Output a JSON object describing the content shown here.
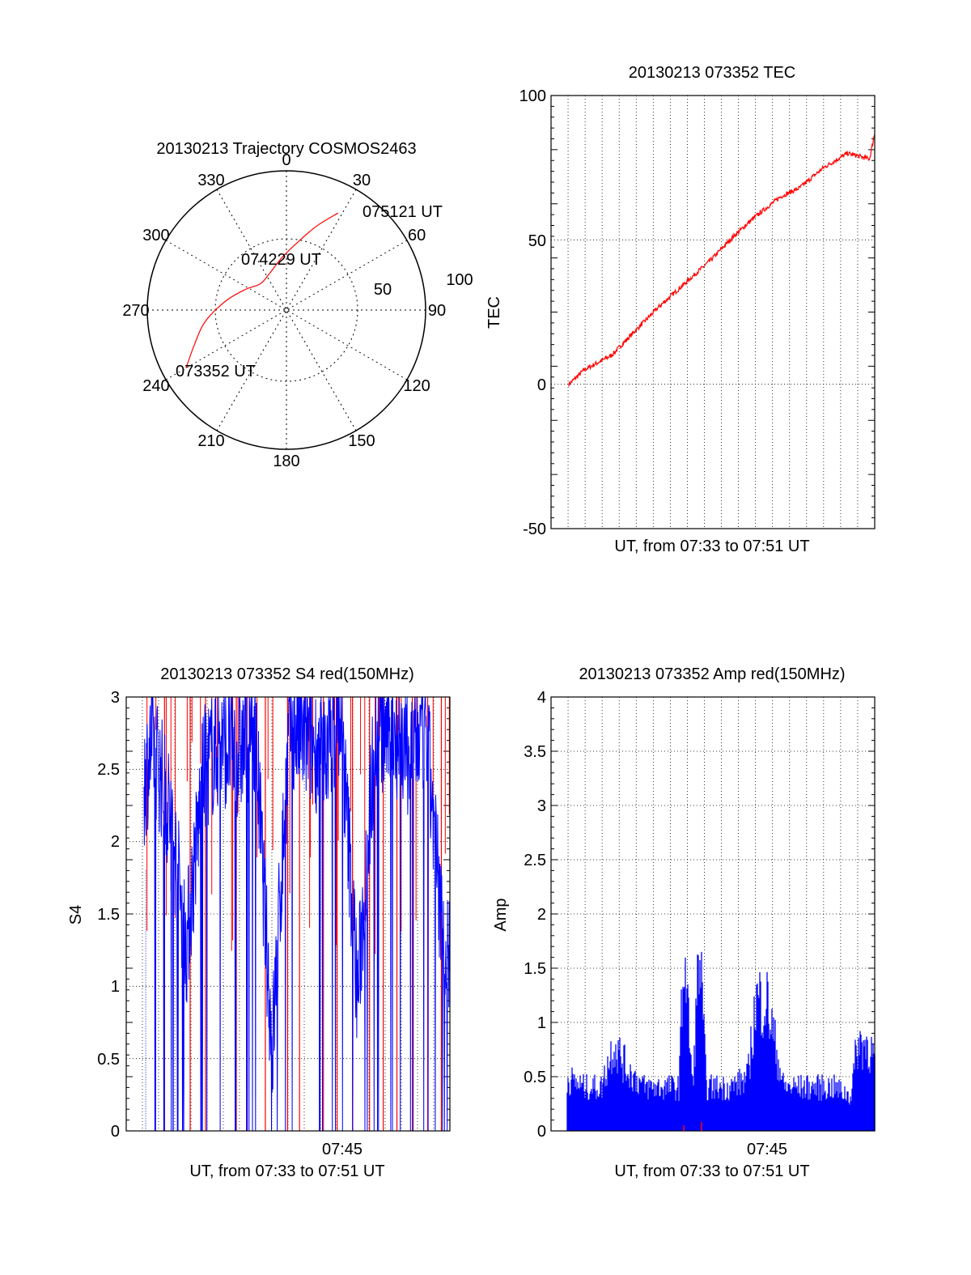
{
  "chart_data": [
    {
      "id": "polar",
      "type": "polar-trajectory",
      "title": "20130213 Trajectory COSMOS2463",
      "azimuth_labels": [
        "0",
        "30",
        "60",
        "90",
        "120",
        "150",
        "180",
        "210",
        "240",
        "270",
        "300",
        "330"
      ],
      "radial_labels": [
        "50",
        "100"
      ],
      "trajectory": {
        "color": "#ff0000",
        "points_az_zen": [
          [
            240,
            75
          ],
          [
            250,
            63
          ],
          [
            262,
            53
          ],
          [
            278,
            40
          ],
          [
            296,
            30
          ],
          [
            315,
            24
          ],
          [
            335,
            26
          ],
          [
            355,
            34
          ],
          [
            10,
            45
          ],
          [
            20,
            58
          ],
          [
            28,
            71
          ]
        ]
      },
      "annotations": [
        {
          "text": "073352 UT",
          "az": 240,
          "zen": 75
        },
        {
          "text": "074229 UT",
          "az": 315,
          "zen": 24
        },
        {
          "text": "075121 UT",
          "az": 28,
          "zen": 71
        }
      ]
    },
    {
      "id": "tec",
      "type": "line",
      "title": "20130213 073352 TEC",
      "xlabel": "UT, from 07:33 to 07:51 UT",
      "ylabel": "TEC",
      "ylim": [
        -50,
        100
      ],
      "yticks": [
        "100",
        "50",
        "0",
        "-50"
      ],
      "grid": true,
      "series": [
        {
          "color": "#ff0000",
          "x_min_after_0733": [
            0,
            0.9,
            2.5,
            3.8,
            5.3,
            6.8,
            8.3,
            9.6,
            10.9,
            12.4,
            13.5,
            14.9,
            16.3,
            17.6,
            17.9
          ],
          "values": [
            0,
            5,
            10,
            18,
            27,
            35,
            43,
            51,
            58,
            65,
            68,
            75,
            80,
            78,
            87
          ]
        }
      ]
    },
    {
      "id": "s4",
      "type": "line",
      "title": "20130213 073352 S4 red(150MHz)",
      "xlabel": "UT, from 07:33 to 07:51 UT",
      "ylabel": "S4",
      "ylim": [
        0,
        3
      ],
      "yticks": [
        "3",
        "2.5",
        "2",
        "1.5",
        "1",
        "0.5",
        "0"
      ],
      "xtick_label": "07:45",
      "grid": true,
      "series": [
        {
          "color": "#0000ff",
          "x_min_after_0733": [
            0,
            0.5,
            1.5,
            2.5,
            3.5,
            4.5,
            5.5,
            6.5,
            7.5,
            8.5,
            9.5,
            10.5,
            11.5,
            12.5,
            13.5,
            14.5,
            15.5,
            16.5,
            17.5,
            17.9
          ],
          "values": [
            2.4,
            2.7,
            2.2,
            1.3,
            2.5,
            2.7,
            2.6,
            2.8,
            0.55,
            2.8,
            2.7,
            2.6,
            2.9,
            0.95,
            2.7,
            2.8,
            2.6,
            2.8,
            1.3,
            1.2
          ]
        },
        {
          "color": "#ff0000",
          "x_min_after_0733": [
            1.2,
            2.7,
            3.6,
            5.4,
            6.0,
            7.1,
            8.4,
            9.1,
            10.5,
            11.3,
            12.2,
            13.2,
            14.0,
            14.8,
            15.7,
            16.6,
            17.4
          ],
          "values": [
            0,
            0,
            0,
            0,
            0,
            0,
            0,
            0,
            0,
            0,
            0,
            0,
            0,
            0,
            0,
            0,
            0
          ]
        }
      ]
    },
    {
      "id": "amp",
      "type": "line",
      "title": "20130213 073352 Amp red(150MHz)",
      "xlabel": "UT, from 07:33 to 07:51 UT",
      "ylabel": "Amp",
      "ylim": [
        0,
        4
      ],
      "yticks": [
        "4",
        "3.5",
        "3",
        "2.5",
        "2",
        "1.5",
        "1",
        "0.5",
        "0"
      ],
      "xtick_label": "07:45",
      "grid": true,
      "series": [
        {
          "color": "#0000ff",
          "x_min_after_0733": [
            0,
            1,
            2,
            2.7,
            3.5,
            4.5,
            5.5,
            6.5,
            6.8,
            7.3,
            7.7,
            8.1,
            9.5,
            10.5,
            11.0,
            11.6,
            12.6,
            13.5,
            14.5,
            15.5,
            16.5,
            16.9,
            17.5,
            17.9
          ],
          "values": [
            0.6,
            0.5,
            0.5,
            1.0,
            0.7,
            0.5,
            0.5,
            0.5,
            2.1,
            0.5,
            2.1,
            0.5,
            0.5,
            0.6,
            1.5,
            1.5,
            0.5,
            0.5,
            0.5,
            0.5,
            0.4,
            1.0,
            1.0,
            0.8
          ]
        }
      ]
    }
  ]
}
